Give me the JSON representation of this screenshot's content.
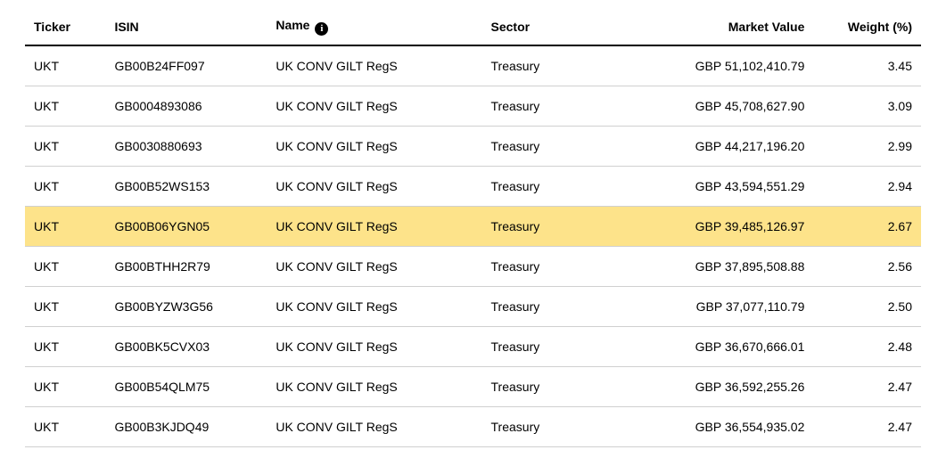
{
  "table": {
    "highlight_color": "#fde38a",
    "border_color": "#d0d0d0",
    "header_border_color": "#000000",
    "text_color": "#000000",
    "background_color": "#ffffff",
    "font_size": 14,
    "columns": [
      {
        "key": "ticker",
        "label": "Ticker",
        "width_pct": 9,
        "align": "left"
      },
      {
        "key": "isin",
        "label": "ISIN",
        "width_pct": 18,
        "align": "left"
      },
      {
        "key": "name",
        "label": "Name",
        "width_pct": 24,
        "align": "left",
        "info_icon": true
      },
      {
        "key": "sector",
        "label": "Sector",
        "width_pct": 15,
        "align": "left"
      },
      {
        "key": "market_value",
        "label": "Market Value",
        "width_pct": 22,
        "align": "right"
      },
      {
        "key": "weight",
        "label": "Weight (%)",
        "width_pct": 12,
        "align": "right"
      }
    ],
    "rows": [
      {
        "ticker": "UKT",
        "isin": "GB00B24FF097",
        "name": "UK CONV GILT RegS",
        "sector": "Treasury",
        "market_value": "GBP 51,102,410.79",
        "weight": "3.45",
        "highlight": false
      },
      {
        "ticker": "UKT",
        "isin": "GB0004893086",
        "name": "UK CONV GILT RegS",
        "sector": "Treasury",
        "market_value": "GBP 45,708,627.90",
        "weight": "3.09",
        "highlight": false
      },
      {
        "ticker": "UKT",
        "isin": "GB0030880693",
        "name": "UK CONV GILT RegS",
        "sector": "Treasury",
        "market_value": "GBP 44,217,196.20",
        "weight": "2.99",
        "highlight": false
      },
      {
        "ticker": "UKT",
        "isin": "GB00B52WS153",
        "name": "UK CONV GILT RegS",
        "sector": "Treasury",
        "market_value": "GBP 43,594,551.29",
        "weight": "2.94",
        "highlight": false
      },
      {
        "ticker": "UKT",
        "isin": "GB00B06YGN05",
        "name": "UK CONV GILT RegS",
        "sector": "Treasury",
        "market_value": "GBP 39,485,126.97",
        "weight": "2.67",
        "highlight": true
      },
      {
        "ticker": "UKT",
        "isin": "GB00BTHH2R79",
        "name": "UK CONV GILT RegS",
        "sector": "Treasury",
        "market_value": "GBP 37,895,508.88",
        "weight": "2.56",
        "highlight": false
      },
      {
        "ticker": "UKT",
        "isin": "GB00BYZW3G56",
        "name": "UK CONV GILT RegS",
        "sector": "Treasury",
        "market_value": "GBP 37,077,110.79",
        "weight": "2.50",
        "highlight": false
      },
      {
        "ticker": "UKT",
        "isin": "GB00BK5CVX03",
        "name": "UK CONV GILT RegS",
        "sector": "Treasury",
        "market_value": "GBP 36,670,666.01",
        "weight": "2.48",
        "highlight": false
      },
      {
        "ticker": "UKT",
        "isin": "GB00B54QLM75",
        "name": "UK CONV GILT RegS",
        "sector": "Treasury",
        "market_value": "GBP 36,592,255.26",
        "weight": "2.47",
        "highlight": false
      },
      {
        "ticker": "UKT",
        "isin": "GB00B3KJDQ49",
        "name": "UK CONV GILT RegS",
        "sector": "Treasury",
        "market_value": "GBP 36,554,935.02",
        "weight": "2.47",
        "highlight": false
      }
    ]
  }
}
